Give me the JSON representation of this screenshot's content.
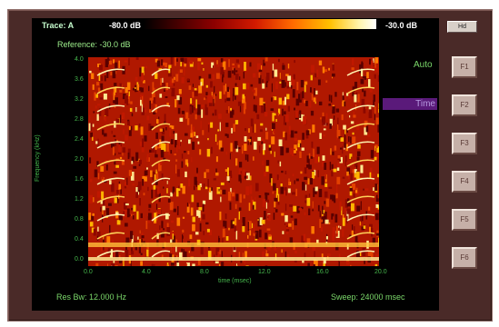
{
  "header": {
    "trace_label": "Trace: A",
    "min_value": "-80.0 dB",
    "max_value": "-30.0 dB",
    "hd_button": "Hd"
  },
  "reference": "Reference: -30.0 dB",
  "status": {
    "res_bw": "Res Bw: 12.000 Hz",
    "sweep": "Sweep: 24000 msec"
  },
  "axes": {
    "ylabel": "Frequency (kHz)",
    "xlabel": "time (msec)",
    "yticks": [
      "4.0",
      "3.6",
      "3.2",
      "2.8",
      "2.4",
      "2.0",
      "1.6",
      "1.2",
      "0.8",
      "0.4",
      "0.0"
    ],
    "xticks": [
      "0.0",
      "4.0",
      "8.0",
      "12.0",
      "16.0",
      "20.0"
    ]
  },
  "side": {
    "auto": "Auto",
    "time": "Time"
  },
  "fkeys": [
    "F1",
    "F2",
    "F3",
    "F4",
    "F5",
    "F6"
  ],
  "colors": {
    "frame": "#4a2a28",
    "text_green": "#7bd86a",
    "highlight": "#5a1a7a"
  }
}
